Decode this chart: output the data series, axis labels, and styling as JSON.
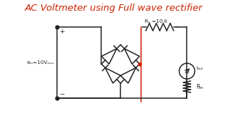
{
  "title": "AC Voltmeter using Full wave rectifier",
  "title_color": "#cc2200",
  "title_fontsize": 9.5,
  "bg_color": "#ffffff",
  "circuit_color": "#222222",
  "red_color": "#cc2200",
  "label_em": "eₘ=10Vᵣₘₛ",
  "label_Rs": "Rₛ =10 k",
  "label_Ifsd": "I₆ₜ₄",
  "label_Rm": "Rₘ",
  "label_plus": "+",
  "label_minus": "−"
}
